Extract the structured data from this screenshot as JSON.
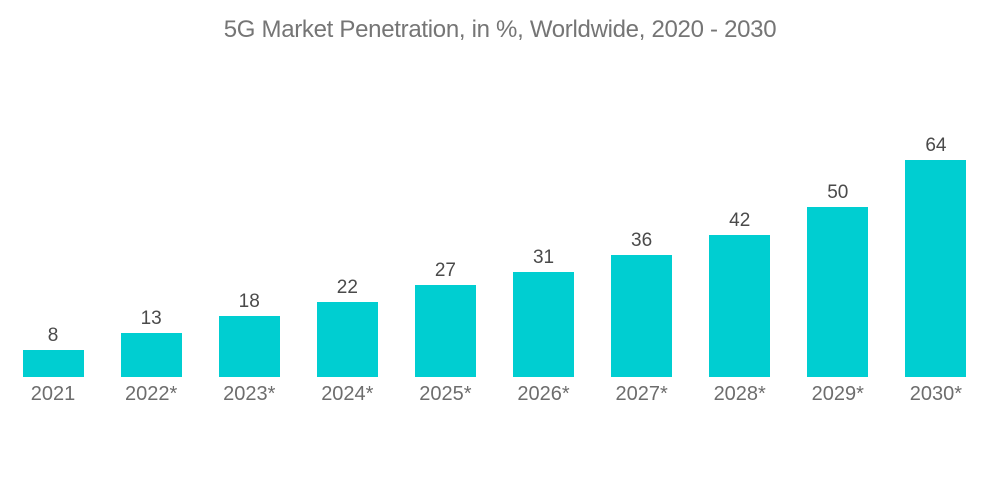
{
  "title": "5G Market Penetration, in %, Worldwide, 2020 - 2030",
  "colors": {
    "background": "#ffffff",
    "bar": "#00CED1",
    "title_text": "#757575",
    "value_text": "#4a4a4a",
    "axis_text": "#6d6d6d"
  },
  "chart_data": {
    "type": "bar",
    "title": "5G Market Penetration, in %, Worldwide, 2020 - 2030",
    "categories": [
      "2021",
      "2022*",
      "2023*",
      "2024*",
      "2025*",
      "2026*",
      "2027*",
      "2028*",
      "2029*",
      "2030*"
    ],
    "values": [
      8,
      13,
      18,
      22,
      27,
      31,
      36,
      42,
      50,
      64
    ],
    "xlabel": "",
    "ylabel": "",
    "ylim": [
      0,
      70
    ],
    "grid": false,
    "legend": "none",
    "data_labels": true,
    "axis_lines": "none"
  }
}
